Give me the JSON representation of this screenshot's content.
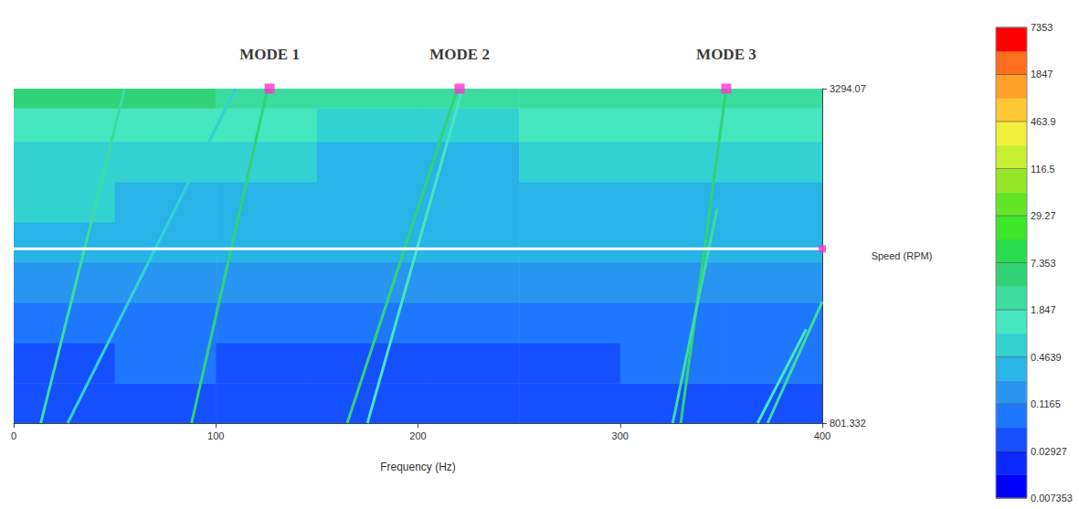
{
  "chart_data": {
    "type": "heatmap",
    "xlabel": "Frequency (Hz)",
    "ylabel": "Speed (RPM)",
    "xlim": [
      0,
      400
    ],
    "xticks": [
      0,
      100,
      200,
      300,
      400
    ],
    "ylim": [
      801.332,
      3294.07
    ],
    "yticks": [
      801.332,
      3294.07
    ],
    "grid": false,
    "cells": {
      "x_edges": [
        0,
        50,
        100,
        150,
        200,
        250,
        300,
        350,
        400
      ],
      "y_edges": [
        801.332,
        1100,
        1400,
        1700,
        2000,
        2300,
        2600,
        2900,
        3150,
        3294.07
      ],
      "values": [
        [
          0.03,
          0.03,
          0.03,
          0.04,
          0.03,
          0.03,
          0.04,
          0.05
        ],
        [
          0.05,
          0.06,
          0.05,
          0.04,
          0.05,
          0.05,
          0.06,
          0.06
        ],
        [
          0.08,
          0.1,
          0.08,
          0.07,
          0.08,
          0.08,
          0.1,
          0.1
        ],
        [
          0.15,
          0.2,
          0.15,
          0.12,
          0.15,
          0.15,
          0.2,
          0.2
        ],
        [
          0.3,
          0.35,
          0.3,
          0.25,
          0.25,
          0.3,
          0.3,
          0.35
        ],
        [
          0.5,
          0.4,
          0.35,
          0.3,
          0.3,
          0.35,
          0.35,
          0.4
        ],
        [
          0.8,
          0.6,
          0.5,
          0.45,
          0.45,
          0.5,
          0.5,
          0.55
        ],
        [
          1.5,
          1.2,
          1.0,
          0.9,
          0.9,
          1.0,
          1.0,
          1.1
        ],
        [
          4,
          4,
          3.5,
          3.5,
          3.5,
          3.5,
          3.5,
          3.5
        ]
      ]
    },
    "ridges": [
      {
        "x": [
          13.4,
          54.9
        ],
        "y": [
          801.332,
          3294.07
        ],
        "value": 3
      },
      {
        "x": [
          26.7,
          109.8
        ],
        "y": [
          801.332,
          3294.07
        ],
        "value": 0.6
      },
      {
        "x": [
          88,
          125.6
        ],
        "y": [
          801.332,
          3294.07
        ],
        "value": 5
      },
      {
        "x": [
          165,
          219.5
        ],
        "y": [
          801.332,
          3294.07
        ],
        "value": 5
      },
      {
        "x": [
          175,
          222
        ],
        "y": [
          801.332,
          3294.07
        ],
        "value": 1.5
      },
      {
        "x": [
          330,
          352.5
        ],
        "y": [
          801.332,
          3294.07
        ],
        "value": 4
      },
      {
        "x": [
          326,
          348
        ],
        "y": [
          801.332,
          2400
        ],
        "value": 2
      },
      {
        "x": [
          373,
          400
        ],
        "y": [
          801.332,
          1707
        ],
        "value": 2
      },
      {
        "x": [
          368,
          392
        ],
        "y": [
          801.332,
          1500
        ],
        "value": 1
      }
    ],
    "cursor_speed": 2100,
    "annotations": [
      {
        "text": "MODE 1",
        "x": 126.6,
        "y": 3294.07
      },
      {
        "text": "MODE 2",
        "x": 220.6,
        "y": 3294.07
      },
      {
        "text": "MODE 3",
        "x": 352.5,
        "y": 3294.07
      }
    ],
    "colorbar": {
      "lim": [
        0.007353,
        7353
      ],
      "ticks": [
        7353,
        1847,
        463.9,
        116.5,
        29.27,
        7.353,
        1.847,
        0.4639,
        0.1165,
        0.02927,
        0.007353
      ],
      "log": true
    }
  }
}
